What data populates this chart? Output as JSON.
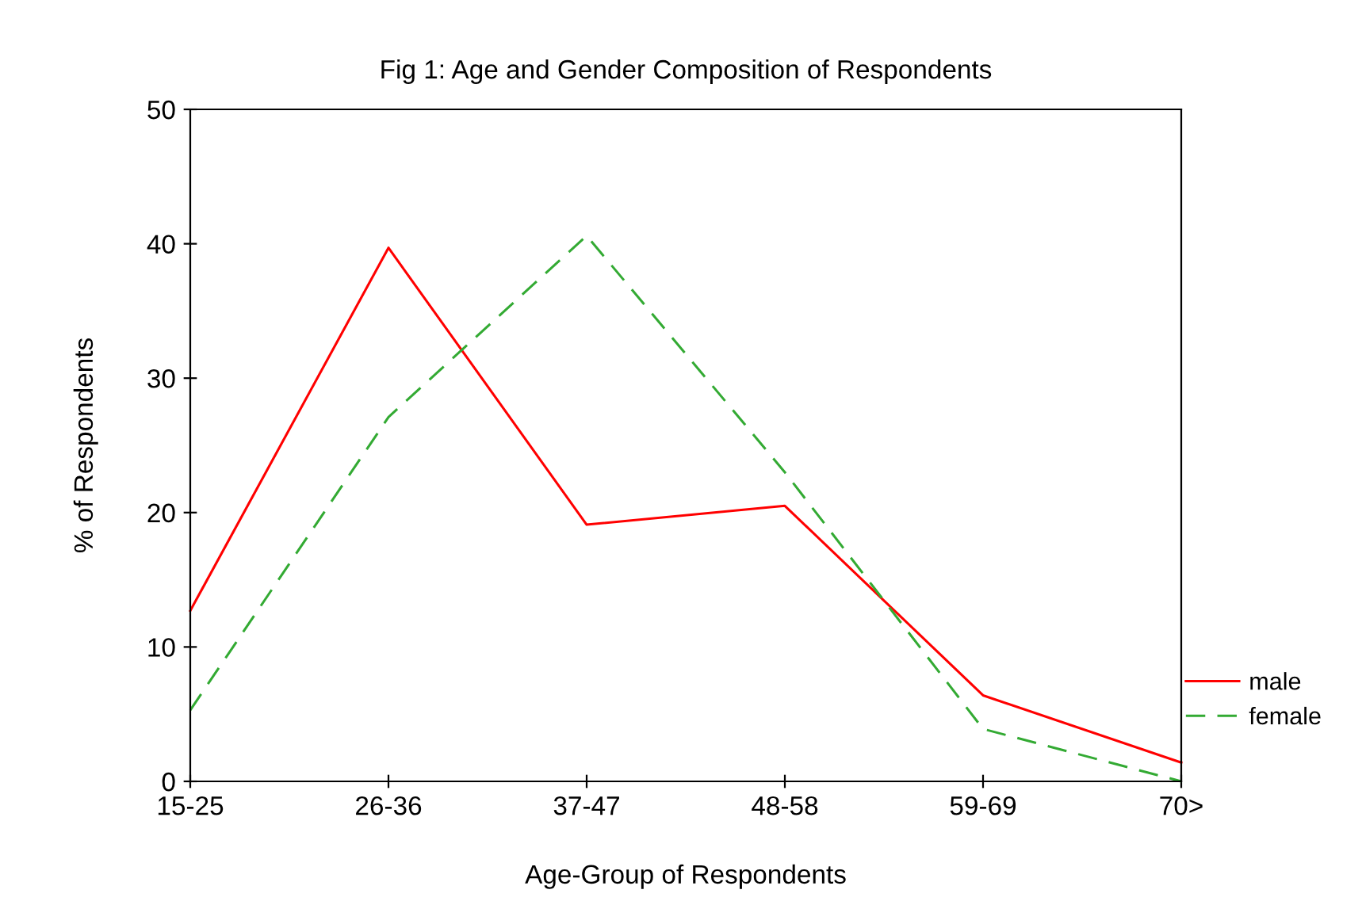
{
  "chart_data": {
    "type": "line",
    "title": "Fig 1: Age and Gender Composition of Respondents",
    "xlabel": "Age-Group of Respondents",
    "ylabel": "% of Respondents",
    "categories": [
      "15-25",
      "26-36",
      "37-47",
      "48-58",
      "59-69",
      "70>"
    ],
    "series": [
      {
        "name": "male",
        "color": "#ff0000",
        "line_style": "solid",
        "values": [
          12.7,
          39.7,
          19.1,
          20.5,
          6.4,
          1.4
        ]
      },
      {
        "name": "female",
        "color": "#33aa33",
        "line_style": "dashed",
        "values": [
          5.3,
          27.1,
          40.6,
          23.0,
          3.9,
          0
        ]
      }
    ],
    "ylim": [
      0,
      50
    ],
    "yticks": [
      0,
      10,
      20,
      30,
      40,
      50
    ],
    "grid": false,
    "legend": "right",
    "marker": "none"
  }
}
